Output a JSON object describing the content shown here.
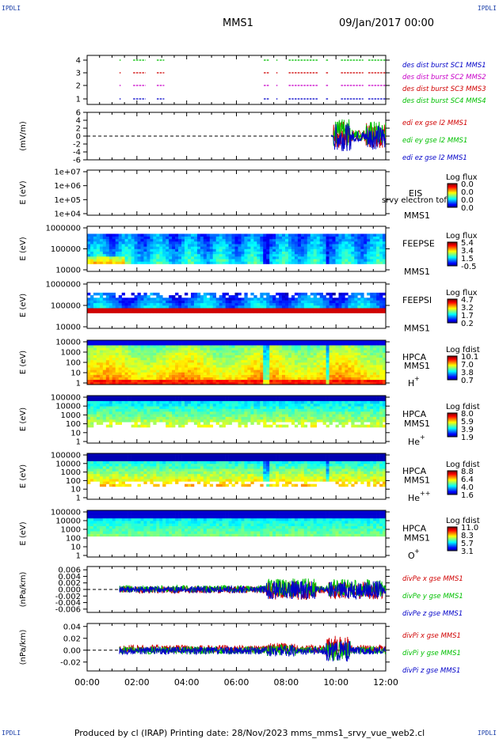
{
  "corners": {
    "tl": "IPDLI",
    "tr": "IPDLI",
    "bl": "IPDLI",
    "br": "IPDLI"
  },
  "header": {
    "spacecraft": "MMS1",
    "date": "09/Jan/2017 00:00"
  },
  "footer": "Produced by cl (IRAP)   Printing date: 28/Nov/2023   mms_mms1_srvy_vue_web2.cl",
  "colors": {
    "mms1": "#0000c8",
    "mms2": "#c800c8",
    "mms3": "#d00000",
    "mms4": "#00c000",
    "x": "#d00000",
    "y": "#00c000",
    "z": "#0000c8"
  },
  "chart_data": [
    {
      "type": "scatter",
      "panel": "burst",
      "yticks": [
        "1",
        "2",
        "3",
        "4"
      ],
      "series": [
        {
          "name": "des dist burst SC1 MMS1",
          "color": "#0000c8",
          "level": 1,
          "intervals": [
            [
              1.3,
              1.35
            ],
            [
              1.85,
              2.35
            ],
            [
              2.8,
              3.1
            ],
            [
              7.1,
              7.3
            ],
            [
              7.6,
              7.65
            ],
            [
              8.1,
              9.3
            ],
            [
              9.6,
              9.7
            ],
            [
              10.2,
              11.1
            ],
            [
              11.3,
              12.0
            ]
          ]
        },
        {
          "name": "des dist burst SC2 MMS2",
          "color": "#c800c8",
          "level": 2,
          "intervals": [
            [
              1.3,
              1.35
            ],
            [
              1.85,
              2.35
            ],
            [
              2.8,
              3.1
            ],
            [
              7.1,
              7.3
            ],
            [
              7.6,
              7.65
            ],
            [
              8.1,
              9.3
            ],
            [
              9.6,
              9.7
            ],
            [
              10.2,
              11.1
            ],
            [
              11.3,
              12.0
            ]
          ]
        },
        {
          "name": "des dist burst SC3 MMS3",
          "color": "#d00000",
          "level": 3,
          "intervals": [
            [
              1.3,
              1.35
            ],
            [
              1.85,
              2.35
            ],
            [
              2.8,
              3.1
            ],
            [
              7.1,
              7.3
            ],
            [
              7.6,
              7.65
            ],
            [
              8.1,
              9.3
            ],
            [
              9.6,
              9.7
            ],
            [
              10.2,
              11.1
            ],
            [
              11.3,
              12.0
            ]
          ]
        },
        {
          "name": "des dist burst SC4 MMS4",
          "color": "#00c000",
          "level": 4,
          "intervals": [
            [
              1.3,
              1.35
            ],
            [
              1.85,
              2.35
            ],
            [
              2.8,
              3.1
            ],
            [
              7.1,
              7.3
            ],
            [
              7.6,
              7.65
            ],
            [
              8.1,
              9.3
            ],
            [
              9.6,
              9.7
            ],
            [
              10.2,
              11.1
            ],
            [
              11.3,
              12.0
            ]
          ]
        }
      ]
    },
    {
      "type": "line",
      "panel": "edi",
      "ylabel": "(mV/m)",
      "yticks": [
        "-6",
        "-4",
        "-2",
        "0",
        "2",
        "4",
        "6"
      ],
      "ylim": [
        -6,
        6
      ],
      "series": [
        {
          "name": "edi ex gse l2 MMS1",
          "color": "#d00000"
        },
        {
          "name": "edi ey gse l2 MMS1",
          "color": "#00c000"
        },
        {
          "name": "edi ez gse l2 MMS1",
          "color": "#0000c8"
        }
      ],
      "active_range": [
        9.8,
        12.0
      ]
    },
    {
      "type": "heatmap",
      "panel": "eis",
      "ylabel": "E (eV)",
      "yticks": [
        "1e+04",
        "1e+05",
        "1e+06",
        "1e+07"
      ],
      "labels": [
        "EIS",
        "MMS1"
      ],
      "overlay_text": "srvy electron tof",
      "cbar_title": "Log flux",
      "cbar_ticks": [
        "0.0",
        "0.0",
        "0.0",
        "0.0"
      ]
    },
    {
      "type": "heatmap",
      "panel": "feepse",
      "ylabel": "E (eV)",
      "yticks": [
        "10000",
        "100000",
        "1000000"
      ],
      "labels": [
        "FEEPSE",
        "MMS1"
      ],
      "cbar_title": "Log flux",
      "cbar_ticks": [
        "5.4",
        "3.4",
        "1.5",
        "-0.5"
      ]
    },
    {
      "type": "heatmap",
      "panel": "feepsi",
      "ylabel": "E (eV)",
      "yticks": [
        "10000",
        "100000",
        "1000000"
      ],
      "labels": [
        "FEEPSI",
        "MMS1"
      ],
      "cbar_title": "Log flux",
      "cbar_ticks": [
        "4.7",
        "3.2",
        "1.7",
        "0.2"
      ]
    },
    {
      "type": "heatmap",
      "panel": "hpca_h",
      "ylabel": "E (eV)",
      "yticks": [
        "1",
        "10",
        "100",
        "1000",
        "10000"
      ],
      "labels": [
        "HPCA",
        "MMS1",
        "H",
        "+"
      ],
      "cbar_title": "Log fdist",
      "cbar_ticks": [
        "10.1",
        "7.0",
        "3.8",
        "0.7"
      ]
    },
    {
      "type": "heatmap",
      "panel": "hpca_he",
      "ylabel": "E (eV)",
      "yticks": [
        "1",
        "10",
        "100",
        "1000",
        "10000",
        "100000"
      ],
      "labels": [
        "HPCA",
        "MMS1",
        "He",
        "+"
      ],
      "cbar_title": "Log fdist",
      "cbar_ticks": [
        "8.0",
        "5.9",
        "3.9",
        "1.9"
      ]
    },
    {
      "type": "heatmap",
      "panel": "hpca_hepp",
      "ylabel": "E (eV)",
      "yticks": [
        "1",
        "10",
        "100",
        "1000",
        "10000",
        "100000"
      ],
      "labels": [
        "HPCA",
        "MMS1",
        "He",
        "++"
      ],
      "cbar_title": "Log fdist",
      "cbar_ticks": [
        "8.8",
        "6.4",
        "4.0",
        "1.6"
      ]
    },
    {
      "type": "heatmap",
      "panel": "hpca_o",
      "ylabel": "E (eV)",
      "yticks": [
        "1",
        "10",
        "100",
        "1000",
        "10000",
        "100000"
      ],
      "labels": [
        "HPCA",
        "MMS1",
        "O",
        "+"
      ],
      "cbar_title": "Log fdist",
      "cbar_ticks": [
        "11.0",
        "8.3",
        "5.7",
        "3.1"
      ]
    },
    {
      "type": "line",
      "panel": "divpe",
      "ylabel": "(nPa/km)",
      "yticks": [
        "-0.006",
        "-0.004",
        "-0.002",
        "0.000",
        "0.002",
        "0.004",
        "0.006"
      ],
      "ylim": [
        -0.007,
        0.007
      ],
      "series": [
        {
          "name": "divPe x gse MMS1",
          "color": "#d00000"
        },
        {
          "name": "divPe y gse MMS1",
          "color": "#00c000"
        },
        {
          "name": "divPe z gse MMS1",
          "color": "#0000c8"
        }
      ],
      "active_range": [
        1.3,
        12.0
      ]
    },
    {
      "type": "line",
      "panel": "divpi",
      "ylabel": "(nPa/km)",
      "yticks": [
        "-0.02",
        "0.00",
        "0.02",
        "0.04"
      ],
      "ylim": [
        -0.035,
        0.045
      ],
      "series": [
        {
          "name": "divPi x gse MMS1",
          "color": "#d00000"
        },
        {
          "name": "divPi y gse MMS1",
          "color": "#00c000"
        },
        {
          "name": "divPi z gse MMS1",
          "color": "#0000c8"
        }
      ],
      "active_range": [
        1.3,
        12.0
      ]
    }
  ],
  "time_axis": {
    "ticks": [
      "00:00",
      "02:00",
      "04:00",
      "06:00",
      "08:00",
      "10:00",
      "12:00"
    ],
    "xlim_hours": [
      0,
      12
    ]
  }
}
